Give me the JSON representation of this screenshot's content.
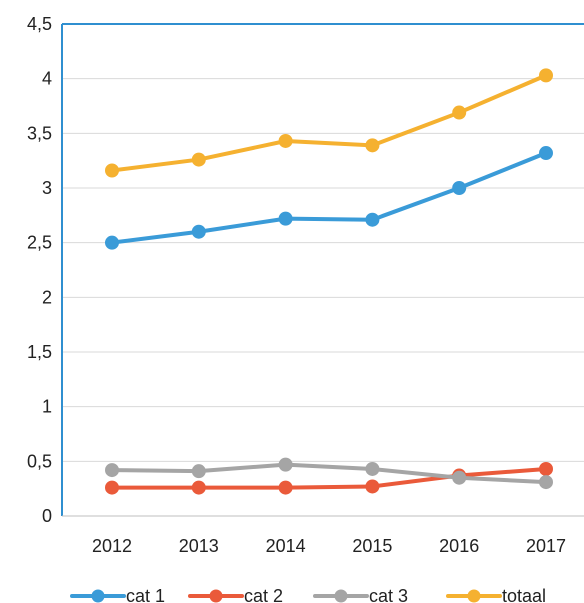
{
  "chart_data": {
    "type": "line",
    "title": "",
    "xlabel": "",
    "ylabel": "",
    "x": [
      "2012",
      "2013",
      "2014",
      "2015",
      "2016",
      "2017"
    ],
    "ylim": [
      0,
      4.5
    ],
    "yticks": [
      "0",
      "0,5",
      "1",
      "1,5",
      "2",
      "2,5",
      "3",
      "3,5",
      "4",
      "4,5"
    ],
    "grid": true,
    "legend_position": "bottom",
    "series": [
      {
        "name": "cat 1",
        "color": "#3a9bd8",
        "values": [
          2.5,
          2.6,
          2.72,
          2.71,
          3.0,
          3.32
        ]
      },
      {
        "name": "cat 2",
        "color": "#ea5a3a",
        "values": [
          0.26,
          0.26,
          0.26,
          0.27,
          0.37,
          0.43
        ]
      },
      {
        "name": "cat 3",
        "color": "#a5a5a5",
        "values": [
          0.42,
          0.41,
          0.47,
          0.43,
          0.35,
          0.31
        ]
      },
      {
        "name": "totaal",
        "color": "#f5b130",
        "values": [
          3.16,
          3.26,
          3.43,
          3.39,
          3.69,
          4.03
        ]
      }
    ]
  }
}
